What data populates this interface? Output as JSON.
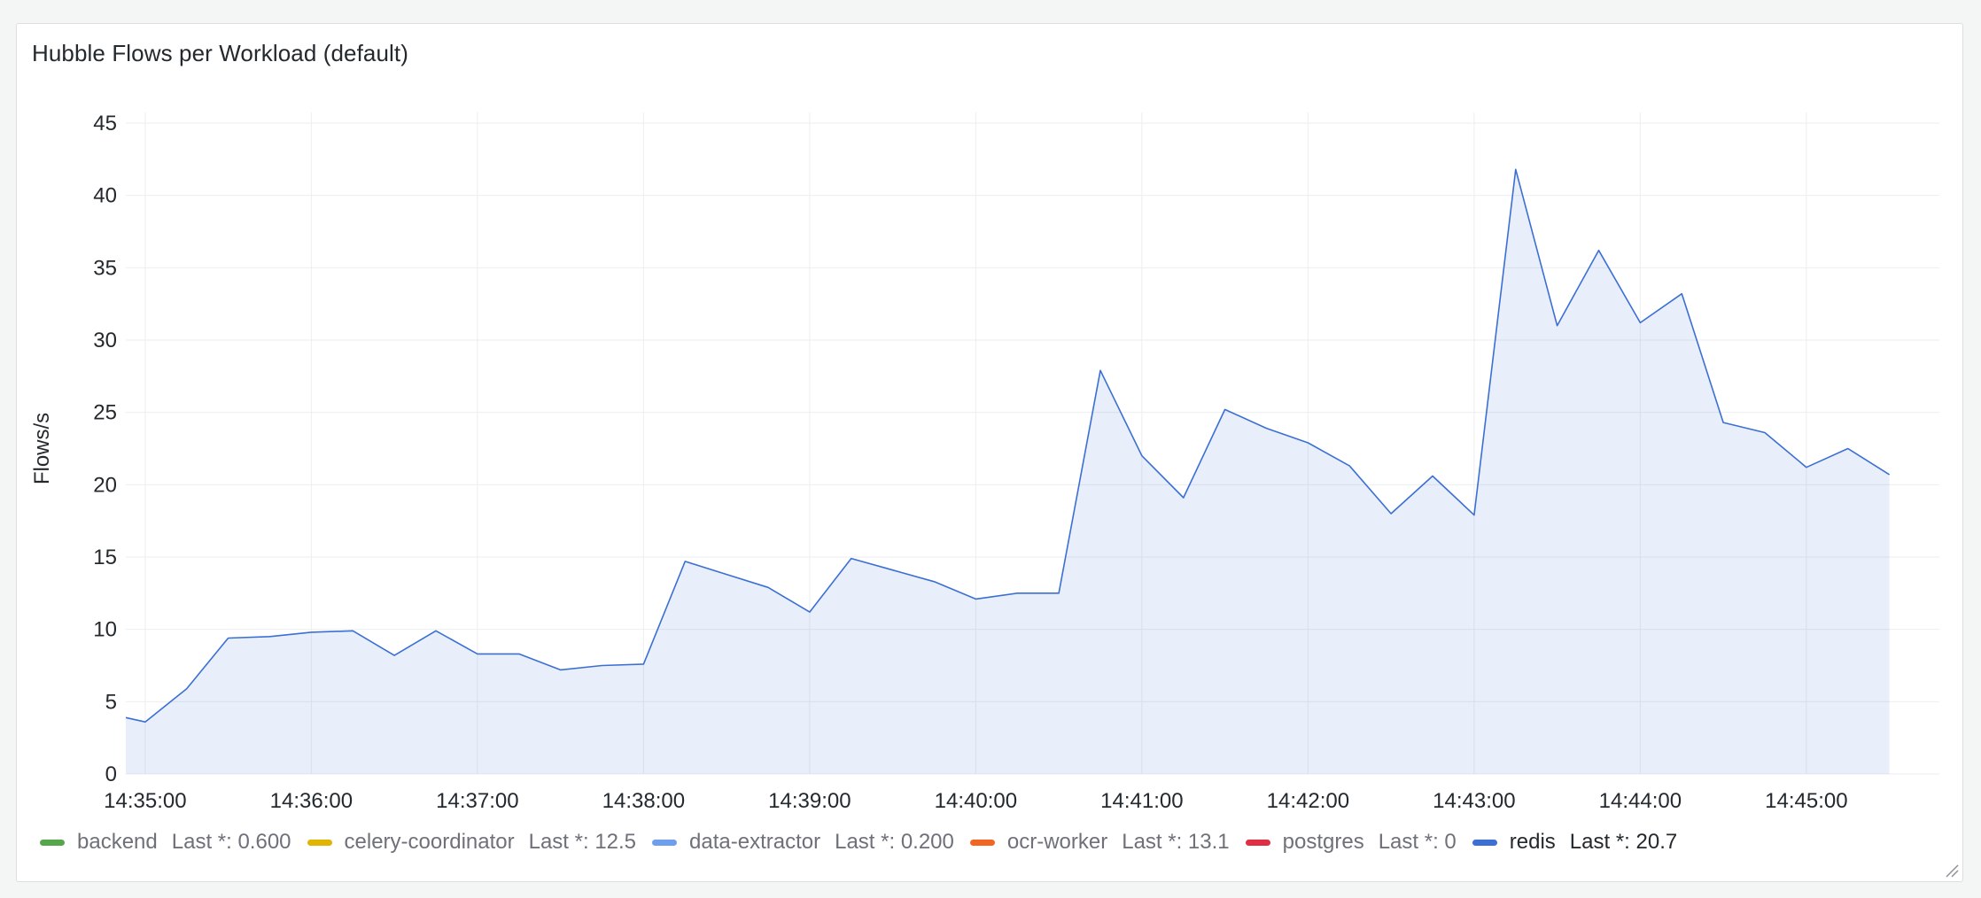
{
  "panel": {
    "title": "Hubble Flows per Workload (default)"
  },
  "chart_data": {
    "type": "area",
    "ylabel": "Flows/s",
    "ylim": [
      0,
      45
    ],
    "yticks": [
      0,
      5,
      10,
      15,
      20,
      25,
      30,
      35,
      40,
      45
    ],
    "xlim": [
      "14:34:53",
      "14:45:30"
    ],
    "xticks": [
      "14:35:00",
      "14:36:00",
      "14:37:00",
      "14:38:00",
      "14:39:00",
      "14:40:00",
      "14:41:00",
      "14:42:00",
      "14:43:00",
      "14:44:00",
      "14:45:00"
    ],
    "grid": true,
    "legend": "bottom",
    "series": [
      {
        "name": "redis",
        "color": "#3b6fd4",
        "x": [
          "14:34:53",
          "14:35:00",
          "14:35:15",
          "14:35:30",
          "14:35:45",
          "14:36:00",
          "14:36:15",
          "14:36:30",
          "14:36:45",
          "14:37:00",
          "14:37:15",
          "14:37:30",
          "14:37:45",
          "14:38:00",
          "14:38:15",
          "14:38:30",
          "14:38:45",
          "14:39:00",
          "14:39:15",
          "14:39:30",
          "14:39:45",
          "14:40:00",
          "14:40:15",
          "14:40:30",
          "14:40:45",
          "14:41:00",
          "14:41:15",
          "14:41:30",
          "14:41:45",
          "14:42:00",
          "14:42:15",
          "14:42:30",
          "14:42:45",
          "14:43:00",
          "14:43:15",
          "14:43:30",
          "14:43:45",
          "14:44:00",
          "14:44:15",
          "14:44:30",
          "14:44:45",
          "14:45:00",
          "14:45:15",
          "14:45:30"
        ],
        "values": [
          3.9,
          3.6,
          5.9,
          9.4,
          9.5,
          9.8,
          9.9,
          8.2,
          9.9,
          8.3,
          8.3,
          7.2,
          7.5,
          7.6,
          14.7,
          13.8,
          12.9,
          11.2,
          14.9,
          14.1,
          13.3,
          12.1,
          12.5,
          12.5,
          27.9,
          22.0,
          19.1,
          25.2,
          23.9,
          22.9,
          21.3,
          18.0,
          20.6,
          17.9,
          41.8,
          31.0,
          36.2,
          31.2,
          33.2,
          24.3,
          23.6,
          21.2,
          22.5,
          20.7
        ]
      }
    ]
  },
  "legend": {
    "items": [
      {
        "name": "backend",
        "color": "#56a64b",
        "last": "Last *: 0.600"
      },
      {
        "name": "celery-coordinator",
        "color": "#e0b400",
        "last": "Last *: 12.5"
      },
      {
        "name": "data-extractor",
        "color": "#6e9fef",
        "last": "Last *: 0.200"
      },
      {
        "name": "ocr-worker",
        "color": "#f16622",
        "last": "Last *: 13.1"
      },
      {
        "name": "postgres",
        "color": "#e02f44",
        "last": "Last *: 0"
      },
      {
        "name": "redis",
        "color": "#3b6fd4",
        "last": "Last *: 20.7"
      }
    ]
  }
}
